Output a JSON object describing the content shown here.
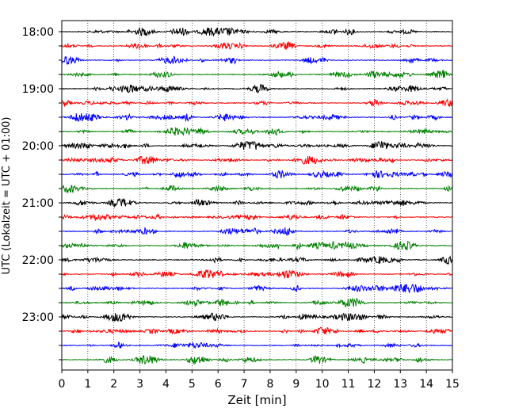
{
  "chart_data": {
    "type": "line",
    "title": "",
    "xlabel": "Zeit  [min]",
    "ylabel": "UTC (Lokalzeit = UTC + 01:00)",
    "xlim": [
      0,
      15
    ],
    "x_ticks": [
      0,
      1,
      2,
      3,
      4,
      5,
      6,
      7,
      8,
      9,
      10,
      11,
      12,
      13,
      14,
      15
    ],
    "grid": "vertical dotted",
    "hour_labels": [
      "18:00",
      "19:00",
      "20:00",
      "21:00",
      "22:00",
      "23:00"
    ],
    "trace_offsets_minutes": [
      0,
      15,
      30,
      45,
      60,
      75,
      90,
      105,
      120,
      135,
      150,
      165,
      180,
      195,
      210,
      225,
      240,
      255,
      270,
      285,
      300,
      315,
      330,
      345
    ],
    "trace_colors": [
      "#000000",
      "#ff0000",
      "#0000ff",
      "#008000"
    ],
    "trace_count": 24
  }
}
